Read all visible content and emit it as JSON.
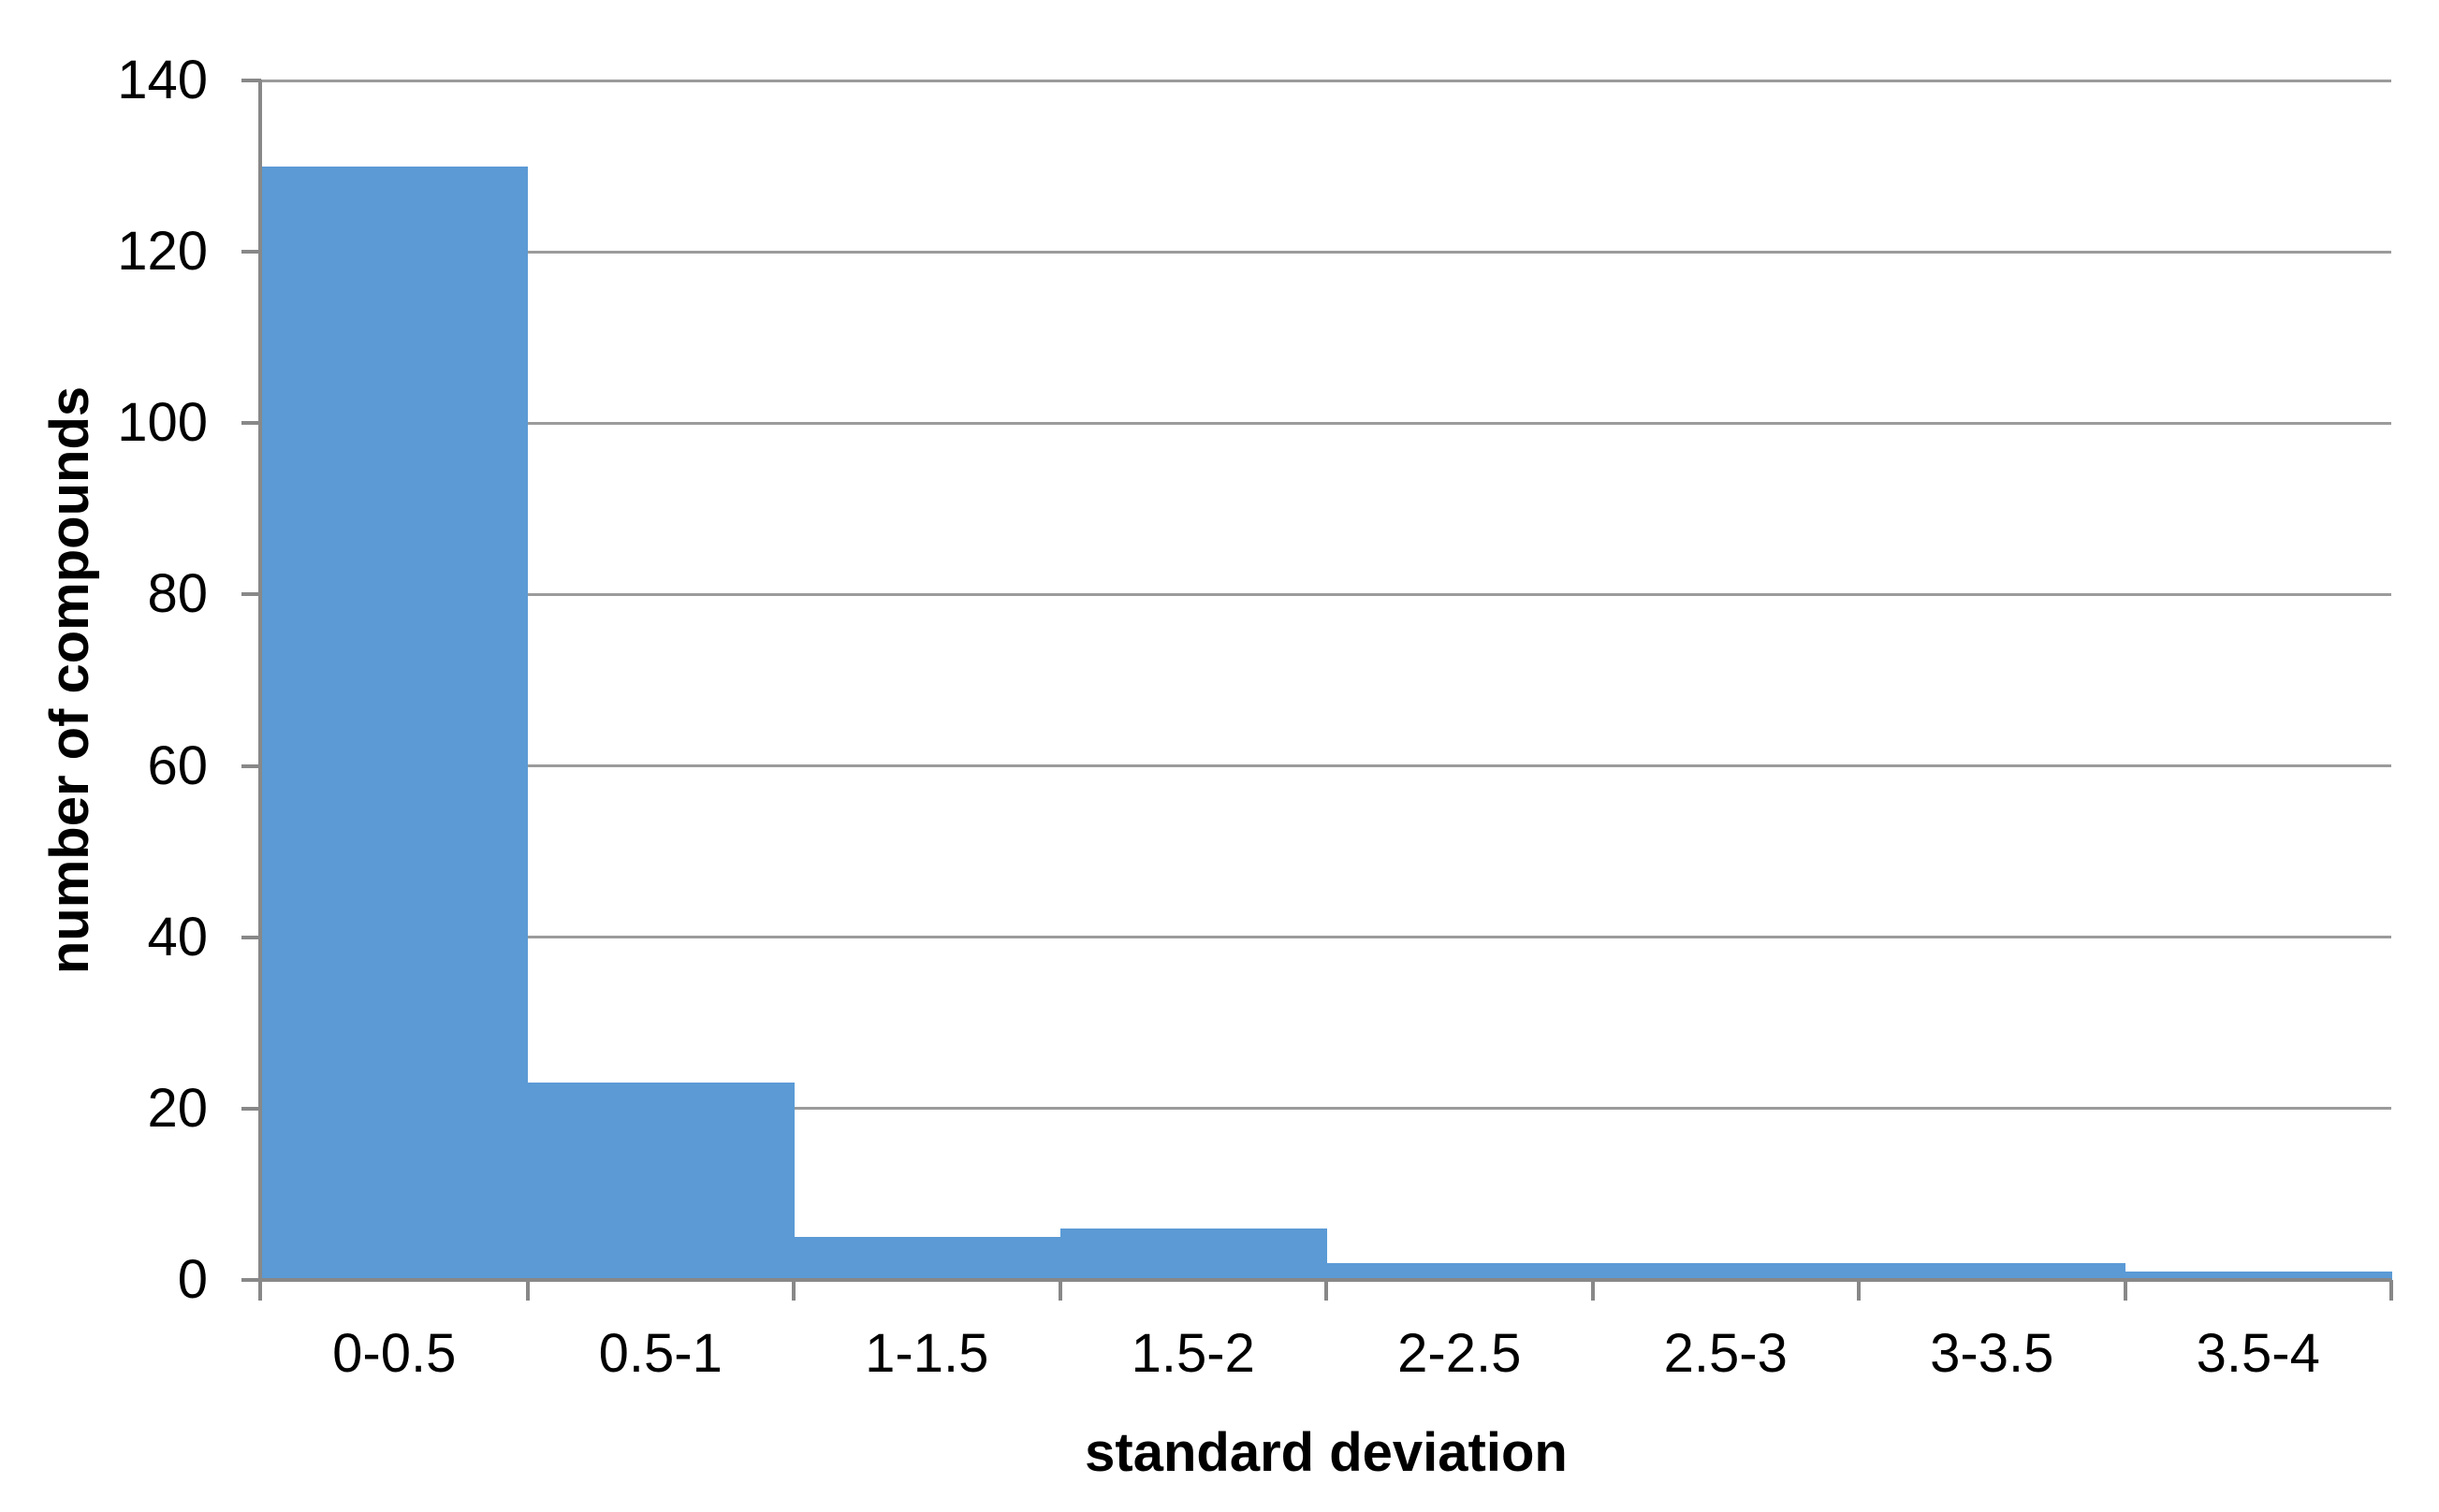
{
  "chart_data": {
    "type": "bar",
    "subtype": "histogram",
    "title": "",
    "categories": [
      "0-0.5",
      "0.5-1",
      "1-1.5",
      "1.5-2",
      "2-2.5",
      "2.5-3",
      "3-3.5",
      "3.5-4"
    ],
    "values": [
      130,
      23,
      5,
      6,
      2,
      2,
      2,
      1
    ],
    "xlabel": "standard deviation",
    "ylabel": "number of compounds",
    "ylim": [
      0,
      140
    ],
    "yticks": [
      0,
      20,
      40,
      60,
      80,
      100,
      120,
      140
    ],
    "gap_width_percent": 0,
    "grid": "horizontal",
    "legend": "none",
    "colors": {
      "bar": "#5B9AD5",
      "gridline": "#9B9B9B",
      "axis": "#888888",
      "text": "#000000",
      "background": "#FFFFFF"
    }
  }
}
